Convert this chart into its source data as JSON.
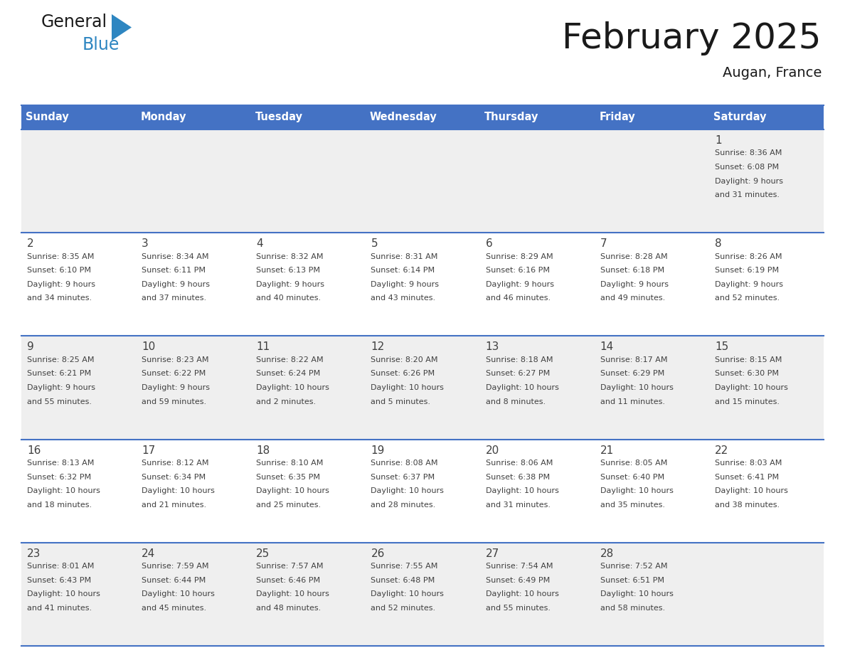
{
  "title": "February 2025",
  "subtitle": "Augan, France",
  "header_bg": "#4472C4",
  "header_text_color": "#FFFFFF",
  "cell_bg_light": "#EFEFEF",
  "cell_bg_white": "#FFFFFF",
  "border_color": "#4472C4",
  "day_names": [
    "Sunday",
    "Monday",
    "Tuesday",
    "Wednesday",
    "Thursday",
    "Friday",
    "Saturday"
  ],
  "general_text_color": "#404040",
  "title_color": "#1a1a1a",
  "logo_general_color": "#1a1a1a",
  "logo_blue_color": "#2E86C1",
  "days": [
    {
      "day": 1,
      "col": 6,
      "row": 0,
      "sunrise": "8:36 AM",
      "sunset": "6:08 PM",
      "daylight": "9 hours and 31 minutes."
    },
    {
      "day": 2,
      "col": 0,
      "row": 1,
      "sunrise": "8:35 AM",
      "sunset": "6:10 PM",
      "daylight": "9 hours and 34 minutes."
    },
    {
      "day": 3,
      "col": 1,
      "row": 1,
      "sunrise": "8:34 AM",
      "sunset": "6:11 PM",
      "daylight": "9 hours and 37 minutes."
    },
    {
      "day": 4,
      "col": 2,
      "row": 1,
      "sunrise": "8:32 AM",
      "sunset": "6:13 PM",
      "daylight": "9 hours and 40 minutes."
    },
    {
      "day": 5,
      "col": 3,
      "row": 1,
      "sunrise": "8:31 AM",
      "sunset": "6:14 PM",
      "daylight": "9 hours and 43 minutes."
    },
    {
      "day": 6,
      "col": 4,
      "row": 1,
      "sunrise": "8:29 AM",
      "sunset": "6:16 PM",
      "daylight": "9 hours and 46 minutes."
    },
    {
      "day": 7,
      "col": 5,
      "row": 1,
      "sunrise": "8:28 AM",
      "sunset": "6:18 PM",
      "daylight": "9 hours and 49 minutes."
    },
    {
      "day": 8,
      "col": 6,
      "row": 1,
      "sunrise": "8:26 AM",
      "sunset": "6:19 PM",
      "daylight": "9 hours and 52 minutes."
    },
    {
      "day": 9,
      "col": 0,
      "row": 2,
      "sunrise": "8:25 AM",
      "sunset": "6:21 PM",
      "daylight": "9 hours and 55 minutes."
    },
    {
      "day": 10,
      "col": 1,
      "row": 2,
      "sunrise": "8:23 AM",
      "sunset": "6:22 PM",
      "daylight": "9 hours and 59 minutes."
    },
    {
      "day": 11,
      "col": 2,
      "row": 2,
      "sunrise": "8:22 AM",
      "sunset": "6:24 PM",
      "daylight": "10 hours and 2 minutes."
    },
    {
      "day": 12,
      "col": 3,
      "row": 2,
      "sunrise": "8:20 AM",
      "sunset": "6:26 PM",
      "daylight": "10 hours and 5 minutes."
    },
    {
      "day": 13,
      "col": 4,
      "row": 2,
      "sunrise": "8:18 AM",
      "sunset": "6:27 PM",
      "daylight": "10 hours and 8 minutes."
    },
    {
      "day": 14,
      "col": 5,
      "row": 2,
      "sunrise": "8:17 AM",
      "sunset": "6:29 PM",
      "daylight": "10 hours and 11 minutes."
    },
    {
      "day": 15,
      "col": 6,
      "row": 2,
      "sunrise": "8:15 AM",
      "sunset": "6:30 PM",
      "daylight": "10 hours and 15 minutes."
    },
    {
      "day": 16,
      "col": 0,
      "row": 3,
      "sunrise": "8:13 AM",
      "sunset": "6:32 PM",
      "daylight": "10 hours and 18 minutes."
    },
    {
      "day": 17,
      "col": 1,
      "row": 3,
      "sunrise": "8:12 AM",
      "sunset": "6:34 PM",
      "daylight": "10 hours and 21 minutes."
    },
    {
      "day": 18,
      "col": 2,
      "row": 3,
      "sunrise": "8:10 AM",
      "sunset": "6:35 PM",
      "daylight": "10 hours and 25 minutes."
    },
    {
      "day": 19,
      "col": 3,
      "row": 3,
      "sunrise": "8:08 AM",
      "sunset": "6:37 PM",
      "daylight": "10 hours and 28 minutes."
    },
    {
      "day": 20,
      "col": 4,
      "row": 3,
      "sunrise": "8:06 AM",
      "sunset": "6:38 PM",
      "daylight": "10 hours and 31 minutes."
    },
    {
      "day": 21,
      "col": 5,
      "row": 3,
      "sunrise": "8:05 AM",
      "sunset": "6:40 PM",
      "daylight": "10 hours and 35 minutes."
    },
    {
      "day": 22,
      "col": 6,
      "row": 3,
      "sunrise": "8:03 AM",
      "sunset": "6:41 PM",
      "daylight": "10 hours and 38 minutes."
    },
    {
      "day": 23,
      "col": 0,
      "row": 4,
      "sunrise": "8:01 AM",
      "sunset": "6:43 PM",
      "daylight": "10 hours and 41 minutes."
    },
    {
      "day": 24,
      "col": 1,
      "row": 4,
      "sunrise": "7:59 AM",
      "sunset": "6:44 PM",
      "daylight": "10 hours and 45 minutes."
    },
    {
      "day": 25,
      "col": 2,
      "row": 4,
      "sunrise": "7:57 AM",
      "sunset": "6:46 PM",
      "daylight": "10 hours and 48 minutes."
    },
    {
      "day": 26,
      "col": 3,
      "row": 4,
      "sunrise": "7:55 AM",
      "sunset": "6:48 PM",
      "daylight": "10 hours and 52 minutes."
    },
    {
      "day": 27,
      "col": 4,
      "row": 4,
      "sunrise": "7:54 AM",
      "sunset": "6:49 PM",
      "daylight": "10 hours and 55 minutes."
    },
    {
      "day": 28,
      "col": 5,
      "row": 4,
      "sunrise": "7:52 AM",
      "sunset": "6:51 PM",
      "daylight": "10 hours and 58 minutes."
    }
  ]
}
